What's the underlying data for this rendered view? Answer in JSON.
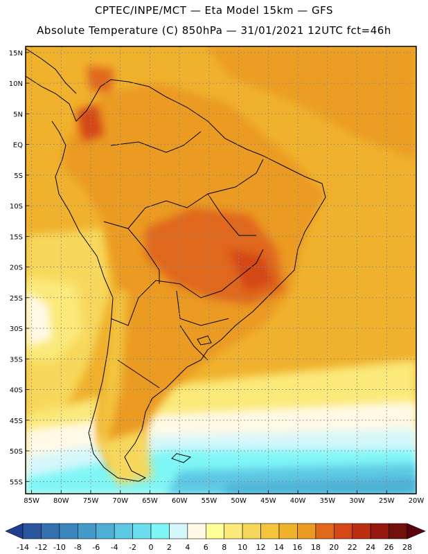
{
  "header": {
    "title_line1": "CPTEC/INPE/MCT —  Eta Model 15km — GFS",
    "title_line2": "Absolute Temperature (C) 850hPa — 31/01/2021 12UTC fct=46h"
  },
  "map": {
    "lat_labels": [
      "15N",
      "10N",
      "5N",
      "EQ",
      "5S",
      "10S",
      "15S",
      "20S",
      "25S",
      "30S",
      "35S",
      "40S",
      "45S",
      "50S",
      "55S"
    ],
    "lon_labels": [
      "85W",
      "80W",
      "75W",
      "70W",
      "65W",
      "60W",
      "55W",
      "50W",
      "45W",
      "40W",
      "35W",
      "30W",
      "25W",
      "20W"
    ]
  },
  "colorbar": {
    "labels": [
      "-14",
      "-12",
      "-10",
      "-8",
      "-6",
      "-4",
      "-2",
      "0",
      "2",
      "4",
      "6",
      "8",
      "10",
      "12",
      "14",
      "16",
      "18",
      "20",
      "22",
      "24",
      "26",
      "28"
    ],
    "colors": [
      "#213f8f",
      "#2a56a0",
      "#3470b0",
      "#3c86be",
      "#449bca",
      "#4eb0d6",
      "#5dc8e4",
      "#6cdeee",
      "#7ff6f6",
      "#d4f7fb",
      "#fff9e6",
      "#ffff99",
      "#fbe97a",
      "#f7d85c",
      "#f3c43c",
      "#f0b12c",
      "#eb9a22",
      "#e0681a",
      "#d44716",
      "#bb2e12",
      "#96170e",
      "#72100c",
      "#5b0410"
    ]
  }
}
